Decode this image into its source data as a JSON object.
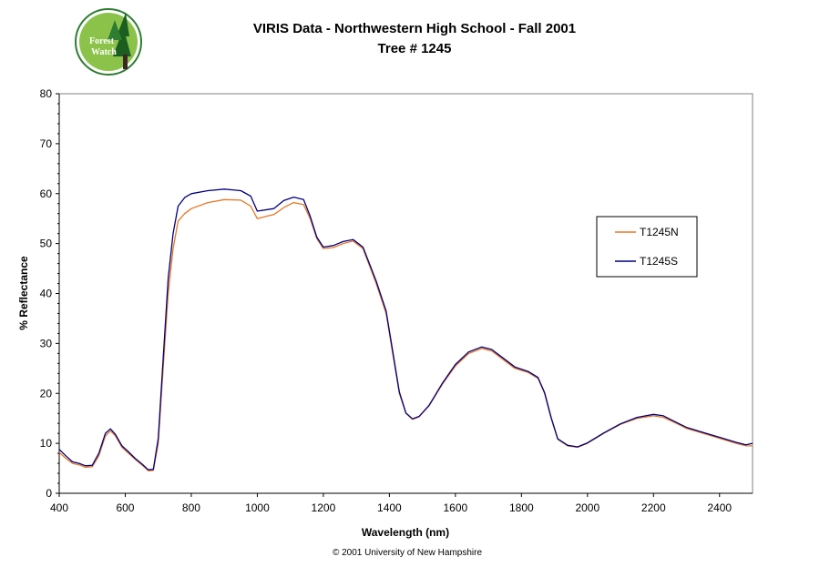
{
  "logo": {
    "line1": "Forest",
    "line2": "Watch"
  },
  "footer": "© 2001 University of New Hampshire",
  "colors": {
    "T1245N": "#e87722",
    "T1245S": "#000080",
    "plot_border": "#808080",
    "logo_ring": "#2e7d32",
    "logo_fill": "#a5d6a7"
  },
  "chart_data": {
    "type": "line",
    "title": "VIRIS Data - Northwestern High School - Fall 2001",
    "subtitle": "Tree # 1245",
    "xlabel": "Wavelength (nm)",
    "ylabel": "% Reflectance",
    "xlim": [
      400,
      2500
    ],
    "ylim": [
      0,
      80
    ],
    "xticks": [
      400,
      600,
      800,
      1000,
      1200,
      1400,
      1600,
      1800,
      2000,
      2200,
      2400
    ],
    "yticks": [
      0,
      10,
      20,
      30,
      40,
      50,
      60,
      70,
      80
    ],
    "grid": false,
    "legend_position": "right",
    "series": [
      {
        "name": "T1245N",
        "x": [
          400,
          420,
          440,
          460,
          480,
          500,
          520,
          540,
          555,
          570,
          590,
          610,
          630,
          650,
          670,
          685,
          700,
          715,
          730,
          745,
          760,
          780,
          800,
          850,
          900,
          950,
          980,
          1000,
          1030,
          1050,
          1080,
          1110,
          1140,
          1160,
          1180,
          1200,
          1230,
          1260,
          1290,
          1320,
          1360,
          1390,
          1410,
          1430,
          1450,
          1470,
          1490,
          1520,
          1560,
          1600,
          1640,
          1680,
          1710,
          1740,
          1780,
          1820,
          1850,
          1870,
          1890,
          1910,
          1940,
          1970,
          2000,
          2050,
          2100,
          2150,
          2200,
          2230,
          2260,
          2300,
          2350,
          2400,
          2450,
          2480,
          2500
        ],
        "y": [
          8.2,
          7.0,
          6.0,
          5.7,
          5.2,
          5.3,
          7.5,
          11.5,
          12.5,
          11.5,
          9.2,
          8.0,
          6.8,
          5.7,
          4.5,
          4.6,
          10.0,
          25.0,
          40.0,
          49.0,
          54.5,
          56.0,
          57.0,
          58.2,
          58.8,
          58.7,
          57.5,
          55.0,
          55.5,
          55.8,
          57.2,
          58.2,
          57.8,
          55.0,
          51.0,
          49.0,
          49.2,
          50.0,
          50.5,
          49.0,
          42.0,
          36.0,
          28.0,
          20.0,
          16.0,
          14.8,
          15.3,
          17.5,
          21.8,
          25.5,
          28.0,
          29.0,
          28.5,
          27.0,
          25.0,
          24.2,
          23.0,
          20.0,
          15.0,
          10.8,
          9.5,
          9.2,
          10.0,
          12.0,
          13.8,
          15.0,
          15.5,
          15.2,
          14.3,
          13.0,
          12.0,
          11.0,
          10.0,
          9.5,
          9.5
        ]
      },
      {
        "name": "T1245S",
        "x": [
          400,
          420,
          440,
          460,
          480,
          500,
          520,
          540,
          555,
          570,
          590,
          610,
          630,
          650,
          670,
          685,
          700,
          715,
          730,
          745,
          760,
          780,
          800,
          850,
          900,
          950,
          980,
          1000,
          1030,
          1050,
          1080,
          1110,
          1140,
          1160,
          1180,
          1200,
          1230,
          1260,
          1290,
          1320,
          1360,
          1390,
          1410,
          1430,
          1450,
          1470,
          1490,
          1520,
          1560,
          1600,
          1640,
          1680,
          1710,
          1740,
          1780,
          1820,
          1850,
          1870,
          1890,
          1910,
          1940,
          1970,
          2000,
          2050,
          2100,
          2150,
          2200,
          2230,
          2260,
          2300,
          2350,
          2400,
          2450,
          2480,
          2500
        ],
        "y": [
          8.8,
          7.5,
          6.3,
          6.0,
          5.5,
          5.6,
          8.0,
          12.0,
          12.9,
          11.8,
          9.5,
          8.3,
          7.0,
          5.9,
          4.7,
          4.8,
          11.0,
          27.0,
          43.0,
          52.0,
          57.5,
          59.2,
          60.0,
          60.6,
          60.9,
          60.6,
          59.5,
          56.5,
          56.8,
          57.0,
          58.6,
          59.3,
          58.8,
          55.5,
          51.3,
          49.3,
          49.6,
          50.4,
          50.8,
          49.3,
          42.5,
          36.5,
          28.5,
          20.3,
          16.1,
          14.9,
          15.4,
          17.6,
          22.0,
          25.8,
          28.3,
          29.3,
          28.8,
          27.3,
          25.3,
          24.4,
          23.2,
          20.2,
          15.2,
          10.9,
          9.6,
          9.3,
          10.1,
          12.1,
          13.9,
          15.2,
          15.8,
          15.5,
          14.5,
          13.2,
          12.2,
          11.2,
          10.2,
          9.7,
          10.0
        ]
      }
    ]
  }
}
